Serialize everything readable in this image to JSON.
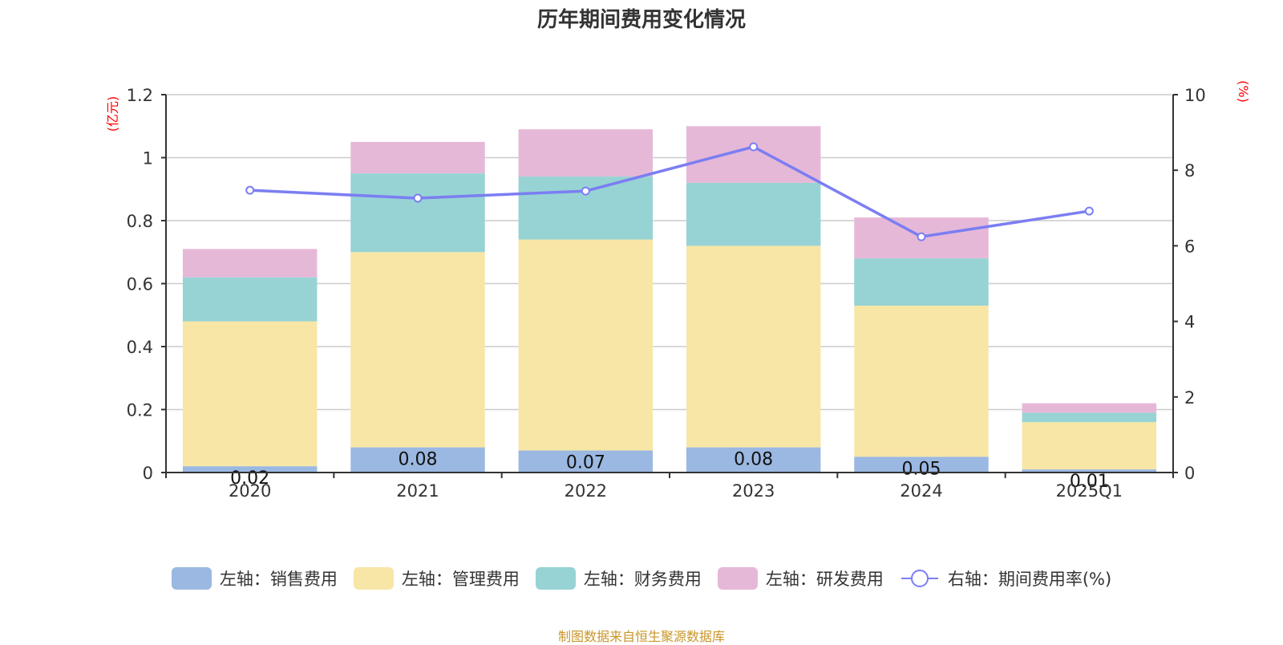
{
  "title": "历年期间费用变化情况",
  "source": "制图数据来自恒生聚源数据库",
  "colors": {
    "sales": "#9bb8e2",
    "admin": "#f7e6a6",
    "finance": "#97d3d4",
    "rnd": "#e6b8d8",
    "rate": "#7b7ef2",
    "axis_unit": "#ff0000",
    "source": "#c8962a"
  },
  "legend": [
    {
      "key": "sales",
      "label": "左轴：销售费用",
      "type": "bar"
    },
    {
      "key": "admin",
      "label": "左轴：管理费用",
      "type": "bar"
    },
    {
      "key": "finance",
      "label": "左轴：财务费用",
      "type": "bar"
    },
    {
      "key": "rnd",
      "label": "左轴：研发费用",
      "type": "bar"
    },
    {
      "key": "rate",
      "label": "右轴：期间费用率(%)",
      "type": "line"
    }
  ],
  "chart_data": {
    "type": "bar",
    "stacked": true,
    "title": "历年期间费用变化情况",
    "categories": [
      "2020",
      "2021",
      "2022",
      "2023",
      "2024",
      "2025Q1"
    ],
    "left_axis": {
      "unit_label": "(亿元)",
      "ylim": [
        0,
        1.2
      ],
      "ticks": [
        "0",
        "0.2",
        "0.4",
        "0.6",
        "0.8",
        "1",
        "1.2"
      ]
    },
    "right_axis": {
      "unit_label": "(%)",
      "ylim": [
        0,
        10
      ],
      "ticks": [
        "0",
        "2",
        "4",
        "6",
        "8",
        "10"
      ]
    },
    "grid": true,
    "legend_position": "bottom",
    "series": [
      {
        "key": "sales",
        "name": "左轴：销售费用",
        "axis": "left",
        "type": "bar",
        "values": [
          0.02,
          0.08,
          0.07,
          0.08,
          0.05,
          0.01
        ],
        "labels": [
          "0.02",
          "0.08",
          "0.07",
          "0.08",
          "0.05",
          "0.01"
        ]
      },
      {
        "key": "admin",
        "name": "左轴：管理费用",
        "axis": "left",
        "type": "bar",
        "values": [
          0.46,
          0.62,
          0.67,
          0.64,
          0.48,
          0.15
        ]
      },
      {
        "key": "finance",
        "name": "左轴：财务费用",
        "axis": "left",
        "type": "bar",
        "values": [
          0.14,
          0.25,
          0.2,
          0.2,
          0.15,
          0.03
        ]
      },
      {
        "key": "rnd",
        "name": "左轴：研发费用",
        "axis": "left",
        "type": "bar",
        "values": [
          0.09,
          0.1,
          0.15,
          0.18,
          0.13,
          0.03
        ]
      },
      {
        "key": "rate",
        "name": "右轴：期间费用率(%)",
        "axis": "right",
        "type": "line",
        "values": [
          7.47,
          7.26,
          7.45,
          8.62,
          6.24,
          6.92
        ]
      }
    ]
  }
}
